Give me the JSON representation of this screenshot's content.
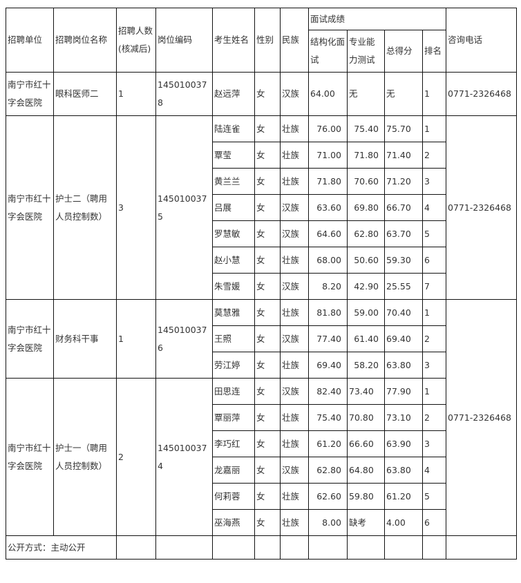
{
  "headers": {
    "unit": "招聘单位",
    "position": "招聘岗位名称",
    "count": "招聘人数(核减后)",
    "code": "岗位编码",
    "name": "考生姓名",
    "gender": "性别",
    "ethnicity": "民族",
    "interview_group": "面试成绩",
    "structured": "结构化面试",
    "professional": "专业能力测试",
    "total": "总得分",
    "rank": "排名",
    "phone": "咨询电话"
  },
  "groups": [
    {
      "unit": "南宁市红十字会医院",
      "position": "眼科医师二",
      "count": "1",
      "code": "1450100378",
      "phone": "0771-2326468",
      "prof_align": "left",
      "rows": [
        [
          "赵远萍",
          "女",
          "汉族",
          "64.00",
          "无",
          "无",
          "1"
        ]
      ]
    },
    {
      "unit": "南宁市红十字会医院",
      "position": "护士二（聘用人员控制数）",
      "count": "3",
      "code": "1450100375",
      "phone": "0771-2326468",
      "prof_align": "right",
      "rows": [
        [
          "陆连雀",
          "女",
          "壮族",
          "76.00",
          "75.40",
          "75.70",
          "1"
        ],
        [
          "覃莹",
          "女",
          "壮族",
          "71.00",
          "71.80",
          "71.40",
          "2"
        ],
        [
          "黄兰兰",
          "女",
          "壮族",
          "71.80",
          "70.60",
          "71.20",
          "3"
        ],
        [
          "吕展",
          "女",
          "汉族",
          "63.60",
          "69.80",
          "66.70",
          "4"
        ],
        [
          "罗慧敏",
          "女",
          "汉族",
          "64.60",
          "62.80",
          "63.70",
          "5"
        ],
        [
          "赵小慧",
          "女",
          "壮族",
          "68.00",
          "50.60",
          "59.30",
          "6"
        ],
        [
          "朱雪媛",
          "女",
          "汉族",
          "8.20",
          "42.90",
          "25.55",
          "7"
        ]
      ]
    },
    {
      "unit": "南宁市红十字会医院",
      "position": "财务科干事",
      "count": "1",
      "code": "1450100376",
      "phone": "0771-2326468",
      "prof_align": "right",
      "rows": [
        [
          "莫慧雅",
          "女",
          "壮族",
          "81.80",
          "59.00",
          "70.40",
          "1"
        ],
        [
          "王照",
          "女",
          "汉族",
          "77.40",
          "61.40",
          "69.40",
          "2"
        ],
        [
          "劳江婷",
          "女",
          "壮族",
          "69.40",
          "58.20",
          "63.80",
          "3"
        ]
      ]
    },
    {
      "unit": "南宁市红十字会医院",
      "position": "护士一（聘用人员控制数）",
      "count": "2",
      "code": "1450100374",
      "phone": "",
      "prof_align": "left",
      "rows": [
        [
          "田思连",
          "女",
          "汉族",
          "82.40",
          "73.40",
          "77.90",
          "1"
        ],
        [
          "覃丽萍",
          "女",
          "壮族",
          "75.40",
          "70.80",
          "73.10",
          "2"
        ],
        [
          "李巧红",
          "女",
          "壮族",
          "61.20",
          "66.60",
          "63.90",
          "3"
        ],
        [
          "龙嘉丽",
          "女",
          "汉族",
          "62.80",
          "64.80",
          "63.80",
          "4"
        ],
        [
          "何莉蓉",
          "女",
          "壮族",
          "62.60",
          "59.80",
          "61.20",
          "5"
        ],
        [
          "巫海燕",
          "女",
          "壮族",
          "8.00",
          "缺考",
          "4.00",
          "6"
        ]
      ]
    }
  ],
  "footer": {
    "disclosure": "公开方式：主动公开"
  }
}
